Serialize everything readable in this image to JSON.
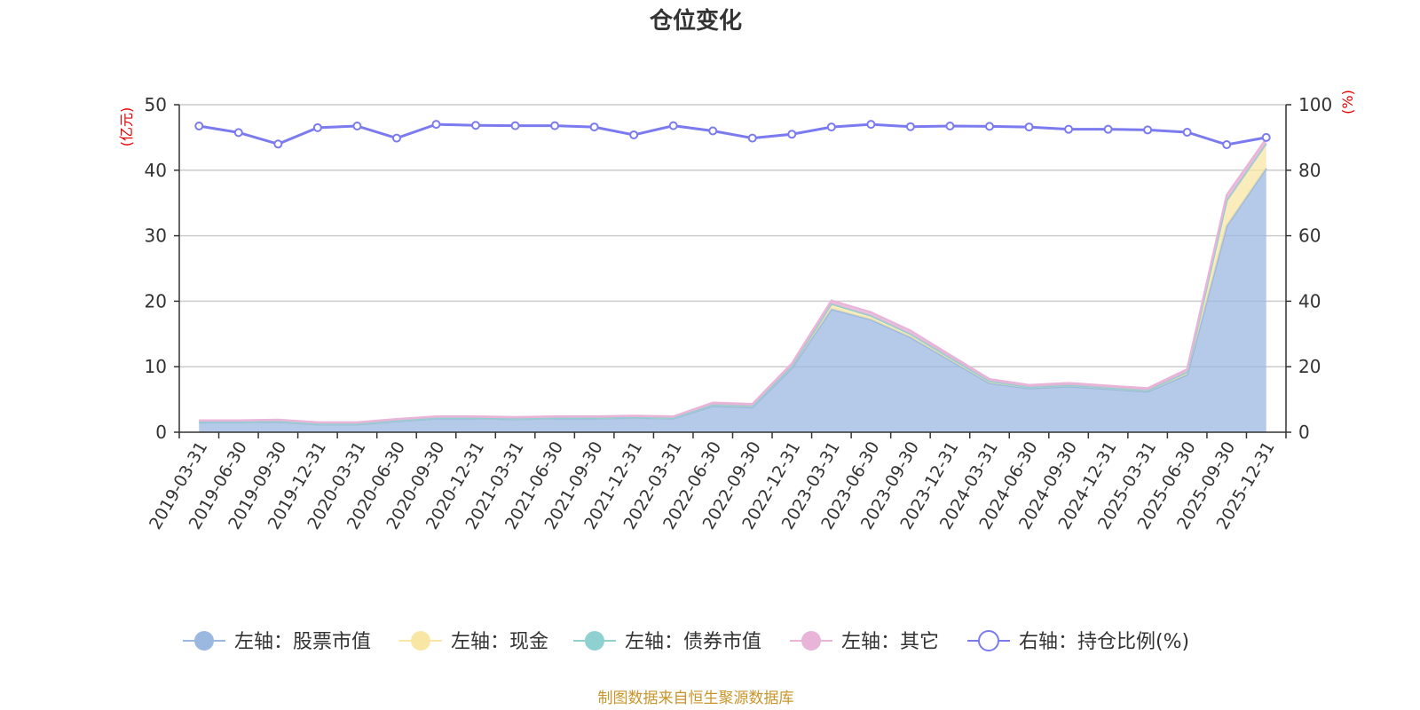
{
  "chart_data": {
    "type": "area",
    "title": "仓位变化",
    "y_left_unit": "(亿元)",
    "y_right_unit": "(%)",
    "y_left_lim": [
      0,
      50
    ],
    "y_left_ticks": [
      0,
      10,
      20,
      30,
      40,
      50
    ],
    "y_right_lim": [
      0,
      100
    ],
    "y_right_ticks": [
      0,
      20,
      40,
      60,
      80,
      100
    ],
    "grid": true,
    "legend_position": "bottom",
    "source_text": "制图数据来自恒生聚源数据库",
    "categories": [
      "2019-03-31",
      "2019-06-30",
      "2019-09-30",
      "2019-12-31",
      "2020-03-31",
      "2020-06-30",
      "2020-09-30",
      "2020-12-31",
      "2021-03-31",
      "2021-06-30",
      "2021-09-30",
      "2021-12-31",
      "2022-03-31",
      "2022-06-30",
      "2022-09-30",
      "2022-12-31",
      "2023-03-31",
      "2023-06-30",
      "2023-09-30",
      "2023-12-31",
      "2024-03-31",
      "2024-06-30",
      "2024-09-30",
      "2024-12-31",
      "2025-03-31",
      "2025-06-30",
      "2025-09-30",
      "2025-12-31"
    ],
    "series": [
      {
        "name": "左轴：股票市值",
        "axis": "left",
        "stack": true,
        "color": "#9bb8e0",
        "values": [
          1.5,
          1.5,
          1.6,
          1.2,
          1.2,
          1.7,
          2.1,
          2.1,
          2.0,
          2.1,
          2.1,
          2.2,
          2.1,
          4.0,
          3.8,
          9.8,
          18.8,
          17.2,
          14.5,
          11.0,
          7.5,
          6.7,
          7.0,
          6.6,
          6.2,
          8.8,
          31.5,
          40.3
        ]
      },
      {
        "name": "左轴：现金",
        "axis": "left",
        "stack": true,
        "color": "#f8e6a4",
        "values": [
          0.1,
          0.1,
          0.1,
          0.1,
          0.1,
          0.1,
          0.1,
          0.1,
          0.1,
          0.1,
          0.1,
          0.1,
          0.1,
          0.2,
          0.2,
          0.3,
          0.8,
          0.6,
          0.5,
          0.4,
          0.3,
          0.2,
          0.2,
          0.2,
          0.2,
          0.4,
          3.9,
          3.8
        ]
      },
      {
        "name": "左轴：债券市值",
        "axis": "left",
        "stack": true,
        "color": "#8fd0d0",
        "values": [
          0,
          0,
          0,
          0,
          0,
          0,
          0,
          0,
          0,
          0,
          0,
          0,
          0,
          0,
          0,
          0,
          0,
          0,
          0,
          0,
          0,
          0,
          0,
          0,
          0,
          0,
          0,
          0
        ]
      },
      {
        "name": "左轴：其它",
        "axis": "left",
        "stack": true,
        "color": "#e8b4d8",
        "values": [
          0.2,
          0.2,
          0.2,
          0.2,
          0.2,
          0.2,
          0.2,
          0.2,
          0.2,
          0.2,
          0.2,
          0.2,
          0.2,
          0.3,
          0.3,
          0.4,
          0.5,
          0.5,
          0.5,
          0.4,
          0.3,
          0.3,
          0.3,
          0.3,
          0.3,
          0.4,
          0.8,
          0.7
        ]
      },
      {
        "name": "右轴：持仓比例(%)",
        "axis": "right",
        "type": "line",
        "color": "#7b7bef",
        "values": [
          93.5,
          91.5,
          88.0,
          93.0,
          93.5,
          89.8,
          94.0,
          93.7,
          93.6,
          93.6,
          93.2,
          90.8,
          93.6,
          92.0,
          89.8,
          91.0,
          93.2,
          94.0,
          93.3,
          93.5,
          93.4,
          93.2,
          92.5,
          92.5,
          92.3,
          91.6,
          87.8,
          90.0
        ]
      }
    ]
  }
}
